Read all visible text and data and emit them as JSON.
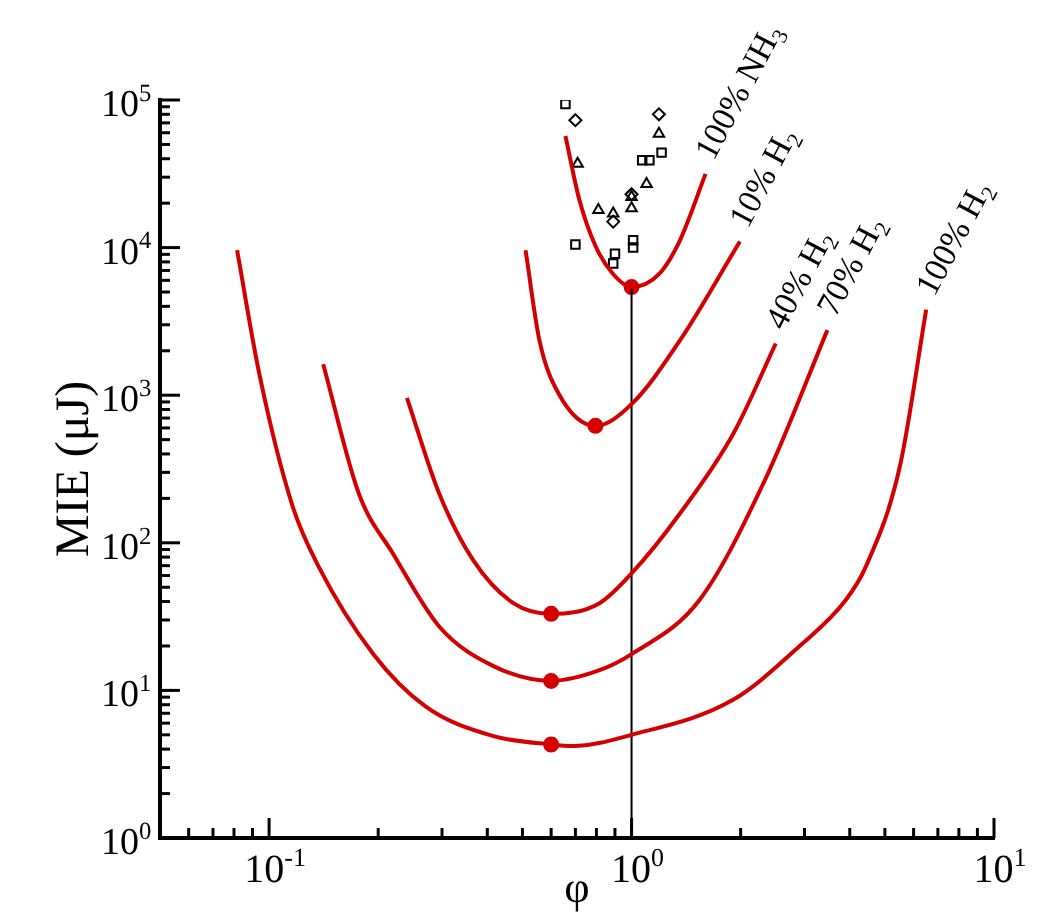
{
  "chart_data": {
    "type": "line",
    "xlabel": "φ",
    "ylabel": "MIE (μJ)",
    "log": "xy",
    "legend": false,
    "grid": false,
    "xlim": [
      0.05,
      10
    ],
    "ylim": [
      1,
      100000
    ],
    "xticks": [
      {
        "value": 0.05,
        "label": null
      },
      {
        "value": 0.06,
        "label": null
      },
      {
        "value": 0.07,
        "label": null
      },
      {
        "value": 0.08,
        "label": null
      },
      {
        "value": 0.09,
        "label": null
      },
      {
        "value": 0.1,
        "label": "10$^{-1}$"
      },
      {
        "value": 0.2,
        "label": null
      },
      {
        "value": 0.3,
        "label": null
      },
      {
        "value": 0.4,
        "label": null
      },
      {
        "value": 0.5,
        "label": null
      },
      {
        "value": 0.6,
        "label": null
      },
      {
        "value": 0.7,
        "label": null
      },
      {
        "value": 0.8,
        "label": null
      },
      {
        "value": 0.9,
        "label": null
      },
      {
        "value": 1,
        "label": "10$^{0}$"
      },
      {
        "value": 2,
        "label": null
      },
      {
        "value": 3,
        "label": null
      },
      {
        "value": 4,
        "label": null
      },
      {
        "value": 5,
        "label": null
      },
      {
        "value": 6,
        "label": null
      },
      {
        "value": 7,
        "label": null
      },
      {
        "value": 8,
        "label": null
      },
      {
        "value": 9,
        "label": null
      },
      {
        "value": 10,
        "label": "10$^{1}$"
      }
    ],
    "yticks": [
      {
        "value": 1,
        "label": "10$^{0}$"
      },
      {
        "value": 2,
        "label": null
      },
      {
        "value": 3,
        "label": null
      },
      {
        "value": 4,
        "label": null
      },
      {
        "value": 5,
        "label": null
      },
      {
        "value": 6,
        "label": null
      },
      {
        "value": 7,
        "label": null
      },
      {
        "value": 8,
        "label": null
      },
      {
        "value": 9,
        "label": null
      },
      {
        "value": 10,
        "label": "10$^{1}$"
      },
      {
        "value": 20,
        "label": null
      },
      {
        "value": 30,
        "label": null
      },
      {
        "value": 40,
        "label": null
      },
      {
        "value": 50,
        "label": null
      },
      {
        "value": 60,
        "label": null
      },
      {
        "value": 70,
        "label": null
      },
      {
        "value": 80,
        "label": null
      },
      {
        "value": 90,
        "label": null
      },
      {
        "value": 100,
        "label": "10$^{2}$"
      },
      {
        "value": 200,
        "label": null
      },
      {
        "value": 300,
        "label": null
      },
      {
        "value": 400,
        "label": null
      },
      {
        "value": 500,
        "label": null
      },
      {
        "value": 600,
        "label": null
      },
      {
        "value": 700,
        "label": null
      },
      {
        "value": 800,
        "label": null
      },
      {
        "value": 900,
        "label": null
      },
      {
        "value": 1000,
        "label": "10$^{3}$"
      },
      {
        "value": 2000,
        "label": null
      },
      {
        "value": 3000,
        "label": null
      },
      {
        "value": 4000,
        "label": null
      },
      {
        "value": 5000,
        "label": null
      },
      {
        "value": 6000,
        "label": null
      },
      {
        "value": 7000,
        "label": null
      },
      {
        "value": 8000,
        "label": null
      },
      {
        "value": 9000,
        "label": null
      },
      {
        "value": 10000,
        "label": "10$^{4}$"
      },
      {
        "value": 20000,
        "label": null
      },
      {
        "value": 30000,
        "label": null
      },
      {
        "value": 40000,
        "label": null
      },
      {
        "value": 50000,
        "label": null
      },
      {
        "value": 60000,
        "label": null
      },
      {
        "value": 70000,
        "label": null
      },
      {
        "value": 80000,
        "label": null
      },
      {
        "value": 90000,
        "label": null
      },
      {
        "value": 100000,
        "label": "10$^{5}$"
      }
    ],
    "series": [
      {
        "name": "100% H$_{2}$",
        "color": "#d40000",
        "marker": "none",
        "x": [
          0.0816,
          0.094,
          0.116,
          0.137,
          0.194,
          0.27,
          0.416,
          0.6,
          0.69,
          1,
          1.9,
          2.91,
          3.9,
          4.43,
          5.5,
          6.5
        ],
        "values": [
          9600,
          1390,
          178,
          69,
          17.6,
          7.8,
          4.9,
          4.3,
          4.2,
          5,
          8.6,
          20,
          41,
          69,
          330,
          3800
        ]
      },
      {
        "name": "70% H$_{2}$",
        "color": "#d40000",
        "marker": "none",
        "x": [
          0.141,
          0.177,
          0.22,
          0.295,
          0.416,
          0.6,
          0.816,
          1,
          1.54,
          2.34,
          3.47
        ],
        "values": [
          1620,
          214,
          84,
          27,
          14.6,
          11.6,
          13.7,
          17.6,
          41,
          270,
          2760
        ]
      },
      {
        "name": "40% H$_{2}$",
        "color": "#d40000",
        "marker": "none",
        "x": [
          0.24,
          0.295,
          0.366,
          0.472,
          0.6,
          0.816,
          1,
          1.36,
          1.91,
          2.5
        ],
        "values": [
          960,
          214,
          76,
          39,
          33,
          39,
          62,
          158,
          550,
          2240
        ]
      },
      {
        "name": "10% H$_{2}$",
        "color": "#d40000",
        "marker": "none",
        "x": [
          0.51,
          0.557,
          0.63,
          0.795,
          1,
          1.36,
          1.99
        ],
        "values": [
          9600,
          2350,
          1020,
          620,
          870,
          2350,
          11000
        ]
      },
      {
        "name": "100% NH$_{3}$",
        "color": "#d40000",
        "marker": "none",
        "x": [
          0.657,
          0.718,
          0.796,
          0.89,
          1,
          1.19,
          1.36,
          1.6
        ],
        "values": [
          57000,
          21000,
          10200,
          6600,
          5400,
          6600,
          11200,
          31600
        ]
      },
      {
        "color": "#000000",
        "marker": "none",
        "x": [
          1,
          1
        ],
        "values": [
          1,
          5400
        ]
      },
      {
        "type": "scatter",
        "color": "#d40000",
        "marker": "circle",
        "x": [
          0.6,
          0.6,
          0.6,
          0.795,
          1
        ],
        "values": [
          4.3,
          11.6,
          33,
          620,
          5400
        ]
      },
      {
        "type": "scatter",
        "color": "#000000",
        "marker": "square",
        "x": [
          0.657,
          1.21,
          1.07,
          1.12,
          0.7,
          0.9,
          0.89,
          1.01,
          1.01
        ],
        "values": [
          94000,
          44000,
          39000,
          39000,
          10500,
          9100,
          7800,
          11200,
          10000
        ]
      },
      {
        "type": "scatter",
        "color": "#000000",
        "marker": "triangle",
        "x": [
          0.71,
          0.81,
          0.89,
          1,
          1,
          1.1,
          1.19
        ],
        "values": [
          37000,
          18000,
          17000,
          22000,
          18500,
          27000,
          59000
        ]
      },
      {
        "type": "scatter",
        "color": "#000000",
        "marker": "diamond",
        "x": [
          0.7,
          1.19,
          0.89,
          1
        ],
        "values": [
          73000,
          80000,
          15000,
          23000
        ]
      }
    ]
  }
}
